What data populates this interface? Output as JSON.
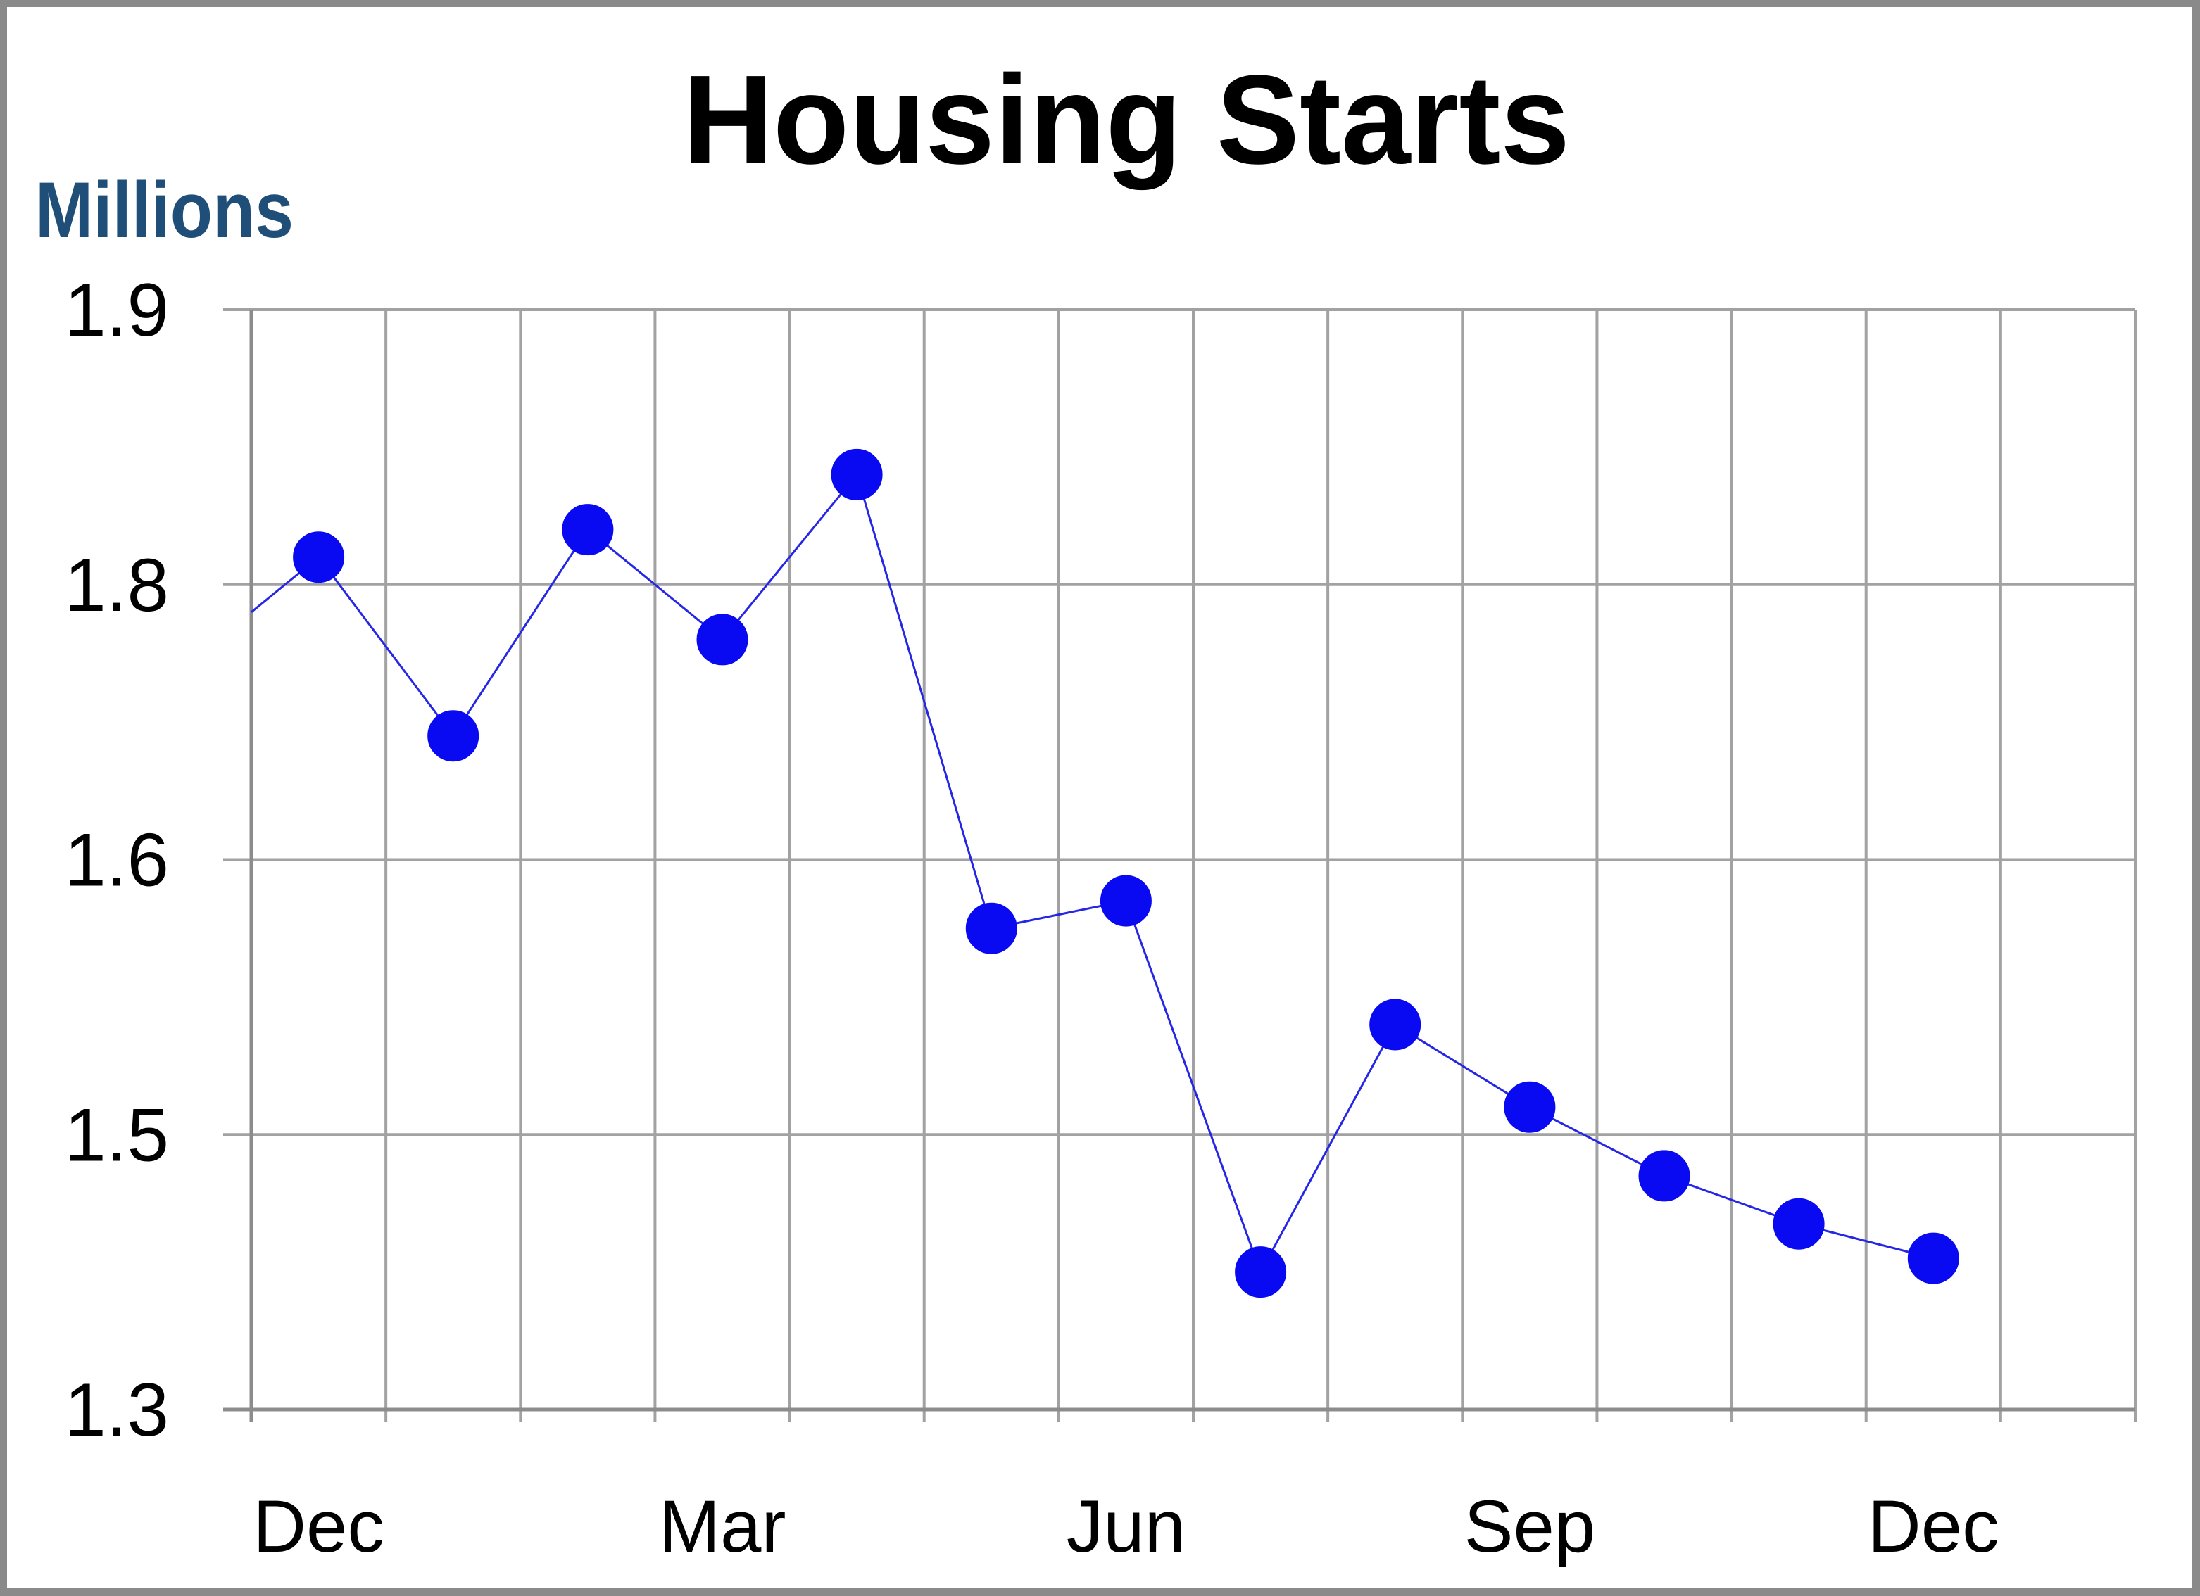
{
  "page": {
    "title": "Housing Starts"
  },
  "chart_data": {
    "type": "line",
    "title": "Housing Starts",
    "xlabel": "",
    "ylabel": "Millions",
    "values": [
      1.81,
      1.69,
      1.82,
      1.76,
      1.84,
      1.575,
      1.585,
      1.4,
      1.54,
      1.51,
      1.47,
      1.435,
      1.41
    ],
    "left_edge_line_start_value": 1.78,
    "y_tick_labels": [
      "1.9",
      "1.8",
      "1.6",
      "1.5",
      "1.3"
    ],
    "y_tick_values": [
      1.9,
      1.8,
      1.6,
      1.5,
      1.3
    ],
    "x_ticks": [
      {
        "label": "Dec",
        "point_index": 0
      },
      {
        "label": "Mar",
        "point_index": 3
      },
      {
        "label": "Jun",
        "point_index": 6
      },
      {
        "label": "Sep",
        "point_index": 9
      },
      {
        "label": "Dec",
        "point_index": 12
      }
    ],
    "x_columns": 14,
    "layout_hints": {
      "y_axis_style": "labeled gridlines equally spaced even though value steps are unequal (0.1 and 0.2)",
      "grid": "full vertical and horizontal gridlines with outside ticks",
      "legend": "none",
      "markers": "large filled circles on thin line"
    },
    "colors": {
      "marker_fill": "#0909F2",
      "line_stroke": "#2626E6",
      "gridline": "#A2A2A2",
      "axis_line": "#8C8C8C",
      "tick_label": "#000000",
      "title": "#000000",
      "ylabel_text": "#1F4E79",
      "slide_background": "#FFFFFF",
      "slide_border": "#8A8A8A"
    }
  }
}
